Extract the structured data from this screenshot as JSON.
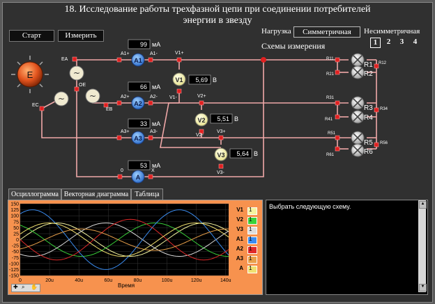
{
  "title": {
    "line1": "18. Исследование работы трехфазной цепи при соединении потребителей",
    "line2": "энергии в звезду"
  },
  "toolbar": {
    "start_label": "Старт",
    "measure_label": "Измерить"
  },
  "load": {
    "label": "Нагрузка",
    "value": "Симметричная",
    "alt_label": "Несимметричная"
  },
  "schemes": {
    "label": "Схемы измерения",
    "items": [
      "1",
      "2",
      "3",
      "4"
    ],
    "selected": "1"
  },
  "generator": {
    "label": "E"
  },
  "nodes": {
    "EA": "EA",
    "EB": "EB",
    "EC": "EC",
    "OE": "OE",
    "zero": "0",
    "X": "X"
  },
  "ammeters": [
    {
      "name": "A1",
      "plus": "A1+",
      "minus": "A1-",
      "value": "99",
      "unit": "мА"
    },
    {
      "name": "A2",
      "plus": "A2+",
      "minus": "A2-",
      "value": "66",
      "unit": "мА"
    },
    {
      "name": "A3",
      "plus": "A3+",
      "minus": "A3-",
      "value": "33",
      "unit": "мА"
    },
    {
      "name": "A",
      "plus": "0",
      "minus": "X",
      "value": "53",
      "unit": "мА"
    }
  ],
  "voltmeters": [
    {
      "name": "V1",
      "plus": "V1+",
      "minus": "V1-",
      "value": "5,69",
      "unit": "В"
    },
    {
      "name": "V2",
      "plus": "V2+",
      "minus": "V2-",
      "value": "5,51",
      "unit": "В"
    },
    {
      "name": "V3",
      "plus": "V3+",
      "minus": "V3-",
      "value": "5,64",
      "unit": "В"
    }
  ],
  "resistors": [
    "R1",
    "R2",
    "R3",
    "R4",
    "R5",
    "R6"
  ],
  "terminals": [
    "R11",
    "R21",
    "R12",
    "R31",
    "R41",
    "R34",
    "R51",
    "R61",
    "R56"
  ],
  "tabs": [
    {
      "label": "Осциллограмма",
      "active": true
    },
    {
      "label": "Векторная диаграмма",
      "active": false
    },
    {
      "label": "Таблица",
      "active": false
    }
  ],
  "message": "Выбрать следующую схему.",
  "chart_data": {
    "type": "line",
    "xlabel": "Время",
    "x_ticks": [
      "0",
      "20u",
      "40u",
      "60u",
      "80u",
      "100u",
      "120u",
      "140u"
    ],
    "y_ticks": [
      "150",
      "125",
      "100",
      "75",
      "50",
      "25",
      "0",
      "-25",
      "-50",
      "-75",
      "-100",
      "-125",
      "-150"
    ],
    "xlim": [
      0,
      142
    ],
    "ylim": [
      -150,
      150
    ],
    "grid": true,
    "series": [
      {
        "name": "V1",
        "color": "#f5f5a0",
        "amplitude": 70,
        "phase": 0,
        "legend_value": "1"
      },
      {
        "name": "V2",
        "color": "#3ad23a",
        "amplitude": 70,
        "phase": 120,
        "legend_value": "1"
      },
      {
        "name": "V3",
        "color": "#dddddd",
        "amplitude": 70,
        "phase": 240,
        "legend_value": "1"
      },
      {
        "name": "A1",
        "color": "#3a8cf0",
        "amplitude": 125,
        "phase": 60,
        "legend_value": "1"
      },
      {
        "name": "A2",
        "color": "#e02a2a",
        "amplitude": 85,
        "phase": 180,
        "legend_value": "1"
      },
      {
        "name": "A3",
        "color": "#e8a04a",
        "amplitude": 45,
        "phase": 300,
        "legend_value": "1"
      },
      {
        "name": "A",
        "color": "#f0e070",
        "amplitude": 70,
        "phase": 20,
        "legend_value": "1"
      }
    ],
    "period": 100
  }
}
